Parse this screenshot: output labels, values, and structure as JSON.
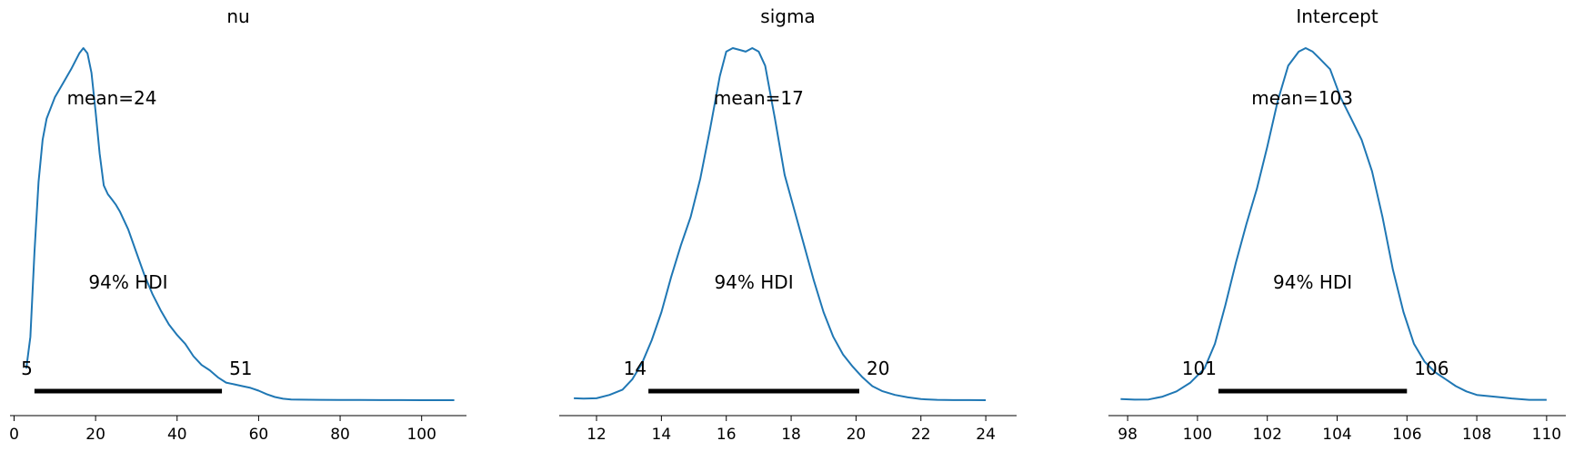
{
  "chart_data": [
    {
      "type": "line",
      "title": "nu",
      "xlabel": "",
      "ylabel": "",
      "xlim": [
        -1,
        111
      ],
      "x_ticks": [
        0,
        20,
        40,
        60,
        80,
        100
      ],
      "mean_label": "mean=24",
      "hdi_label": "94% HDI",
      "hdi": [
        5,
        51
      ],
      "hdi_labels": [
        "5",
        "51"
      ],
      "color": "#1f77b4",
      "series": [
        {
          "x": [
            3,
            4,
            5,
            6,
            7,
            8,
            10,
            12,
            14,
            16,
            17,
            18,
            19,
            20,
            21,
            22,
            23,
            24,
            25,
            26,
            28,
            30,
            32,
            34,
            36,
            38,
            40,
            42,
            44,
            46,
            48,
            50,
            52,
            54,
            56,
            58,
            60,
            62,
            64,
            66,
            68,
            70,
            75,
            80,
            85,
            90,
            95,
            100,
            105,
            108
          ],
          "y": [
            0.09,
            0.18,
            0.42,
            0.62,
            0.74,
            0.8,
            0.86,
            0.9,
            0.94,
            0.985,
            1.0,
            0.985,
            0.93,
            0.82,
            0.7,
            0.61,
            0.585,
            0.57,
            0.555,
            0.535,
            0.485,
            0.42,
            0.355,
            0.3,
            0.255,
            0.215,
            0.185,
            0.16,
            0.125,
            0.1,
            0.085,
            0.065,
            0.05,
            0.045,
            0.04,
            0.035,
            0.027,
            0.017,
            0.009,
            0.004,
            0.002,
            0.0015,
            0.001,
            0.0005,
            0.0004,
            0.0002,
            0.0002,
            0.0001,
            0.0001,
            0.0001
          ]
        }
      ]
    },
    {
      "type": "line",
      "title": "sigma",
      "xlabel": "",
      "ylabel": "",
      "xlim": [
        10.85,
        24.95
      ],
      "x_ticks": [
        12,
        14,
        16,
        18,
        20,
        22,
        24
      ],
      "mean_label": "mean=17",
      "hdi_label": "94% HDI",
      "hdi": [
        13.6,
        20.1
      ],
      "hdi_labels": [
        "14",
        "20"
      ],
      "color": "#1f77b4",
      "series": [
        {
          "x": [
            11.3,
            11.6,
            12.0,
            12.4,
            12.8,
            13.1,
            13.4,
            13.7,
            14.0,
            14.3,
            14.6,
            14.9,
            15.2,
            15.5,
            15.8,
            16.0,
            16.2,
            16.4,
            16.6,
            16.8,
            17.0,
            17.2,
            17.5,
            17.8,
            18.1,
            18.4,
            18.7,
            19.0,
            19.3,
            19.6,
            19.9,
            20.2,
            20.5,
            20.8,
            21.2,
            21.6,
            22.0,
            22.5,
            23.0,
            23.5,
            24.0
          ],
          "y": [
            0.0054,
            0.0047,
            0.0055,
            0.015,
            0.03,
            0.059,
            0.105,
            0.17,
            0.25,
            0.35,
            0.44,
            0.52,
            0.63,
            0.77,
            0.92,
            0.99,
            1.0,
            0.995,
            0.99,
            1.0,
            0.99,
            0.95,
            0.8,
            0.64,
            0.54,
            0.44,
            0.34,
            0.25,
            0.18,
            0.13,
            0.095,
            0.065,
            0.04,
            0.026,
            0.015,
            0.008,
            0.003,
            0.001,
            0.0003,
            0.0002,
            0.0001
          ]
        }
      ]
    },
    {
      "type": "line",
      "title": "Intercept",
      "xlabel": "",
      "ylabel": "",
      "xlim": [
        97.45,
        110.55
      ],
      "x_ticks": [
        98,
        100,
        102,
        104,
        106,
        108,
        110
      ],
      "mean_label": "mean=103",
      "hdi_label": "94% HDI",
      "hdi": [
        100.6,
        106
      ],
      "hdi_labels": [
        "101",
        "106"
      ],
      "color": "#1f77b4",
      "series": [
        {
          "x": [
            97.8,
            98.2,
            98.6,
            99.0,
            99.4,
            99.8,
            100.2,
            100.5,
            100.8,
            101.1,
            101.4,
            101.7,
            102.0,
            102.3,
            102.6,
            102.9,
            103.1,
            103.3,
            103.5,
            103.8,
            104.1,
            104.4,
            104.7,
            105.0,
            105.3,
            105.6,
            105.9,
            106.2,
            106.5,
            106.8,
            107.1,
            107.4,
            107.7,
            108.0,
            108.5,
            109.0,
            109.5,
            110.0
          ],
          "y": [
            0.003,
            0.0015,
            0.002,
            0.01,
            0.025,
            0.05,
            0.09,
            0.16,
            0.27,
            0.39,
            0.5,
            0.6,
            0.72,
            0.85,
            0.95,
            0.99,
            1.0,
            0.99,
            0.97,
            0.94,
            0.86,
            0.8,
            0.74,
            0.65,
            0.52,
            0.37,
            0.25,
            0.16,
            0.11,
            0.08,
            0.06,
            0.04,
            0.025,
            0.015,
            0.01,
            0.005,
            0.001,
            0.001
          ]
        }
      ]
    }
  ]
}
